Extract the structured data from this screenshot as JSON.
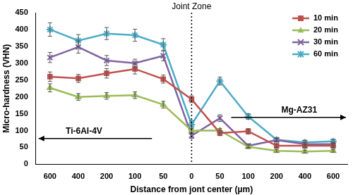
{
  "chart_data": {
    "type": "line",
    "x_label": "Distance from jont center (µm)",
    "y_label": "Micro-hardness (VHN)",
    "categories": [
      "600",
      "400",
      "200",
      "100",
      "50",
      "0",
      "50",
      "100",
      "200",
      "400",
      "600"
    ],
    "series": [
      {
        "name": "10 min",
        "color": "#c0504d",
        "marker": "square",
        "values": [
          260,
          255,
          270,
          283,
          253,
          193,
          93,
          98,
          55,
          55,
          55
        ],
        "errors": [
          14,
          12,
          14,
          15,
          12,
          10,
          8,
          8,
          5,
          5,
          5
        ]
      },
      {
        "name": "20 min",
        "color": "#9bbb59",
        "marker": "triangle",
        "values": [
          227,
          200,
          203,
          205,
          177,
          100,
          100,
          52,
          40,
          38,
          40
        ],
        "errors": [
          12,
          10,
          10,
          10,
          10,
          8,
          6,
          5,
          4,
          4,
          4
        ]
      },
      {
        "name": "30 min",
        "color": "#8064a2",
        "marker": "x",
        "values": [
          317,
          348,
          308,
          300,
          322,
          85,
          137,
          55,
          72,
          60,
          60
        ],
        "errors": [
          15,
          18,
          15,
          12,
          15,
          8,
          10,
          5,
          5,
          5,
          5
        ]
      },
      {
        "name": "60 min",
        "color": "#4bacc6",
        "marker": "star",
        "values": [
          400,
          367,
          388,
          383,
          355,
          118,
          247,
          142,
          73,
          65,
          68
        ],
        "errors": [
          20,
          18,
          18,
          18,
          18,
          12,
          12,
          8,
          6,
          6,
          6
        ]
      }
    ],
    "ylim": [
      0,
      450
    ],
    "yticks": [
      0,
      50,
      100,
      150,
      200,
      250,
      300,
      350,
      400,
      450
    ],
    "grid": false,
    "legend": "upper right",
    "annotations": [
      "Joint Zone",
      "Ti-6Al-4V",
      "Mg-AZ31"
    ]
  }
}
